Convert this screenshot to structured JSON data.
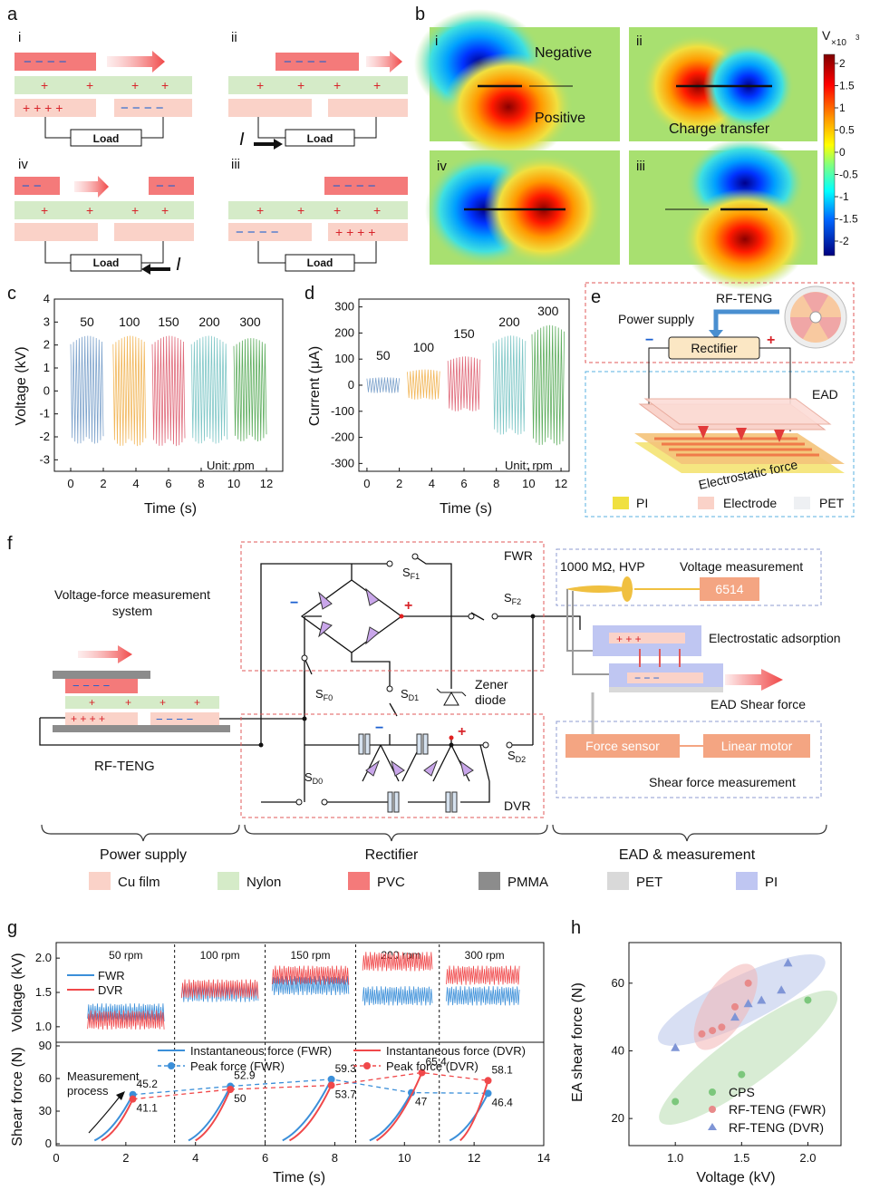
{
  "figure": {
    "panel_a": {
      "letter": "a",
      "sub": [
        "i",
        "ii",
        "iii",
        "iv"
      ],
      "load": "Load",
      "current": "I",
      "minus": "−",
      "plus": "+"
    },
    "panel_b": {
      "letter": "b",
      "sub": [
        "i",
        "ii",
        "iii",
        "iv"
      ],
      "negative": "Negative",
      "positive": "Positive",
      "charge_transfer": "Charge transfer",
      "colorbar": {
        "unit": "V",
        "exp": "×10",
        "exp_pow": "3",
        "ticks": [
          "2",
          "1.5",
          "1",
          "0.5",
          "0",
          "-0.5",
          "-1",
          "-1.5",
          "-2"
        ]
      }
    },
    "panel_c": {
      "letter": "c",
      "ylabel": "Voltage (kV)",
      "xlabel": "Time (s)",
      "unit": "Unit: rpm",
      "speeds": [
        "50",
        "100",
        "150",
        "200",
        "300"
      ],
      "yticks": [
        "4",
        "3",
        "2",
        "1",
        "0",
        "-1",
        "-2",
        "-3"
      ],
      "xticks": [
        "0",
        "2",
        "4",
        "6",
        "8",
        "10",
        "12"
      ]
    },
    "panel_d": {
      "letter": "d",
      "ylabel": "Current (μA)",
      "xlabel": "Time (s)",
      "unit": "Unit: rpm",
      "speeds": [
        "50",
        "100",
        "150",
        "200",
        "300"
      ],
      "yticks": [
        "300",
        "200",
        "100",
        "0",
        "-100",
        "-200",
        "-300"
      ],
      "xticks": [
        "0",
        "2",
        "4",
        "6",
        "8",
        "10",
        "12"
      ]
    },
    "panel_e": {
      "letter": "e",
      "rfteng": "RF-TENG",
      "power_supply": "Power supply",
      "rectifier": "Rectifier",
      "ead": "EAD",
      "es_force": "Electrostatic force",
      "legend": [
        "PI",
        "Electrode",
        "PET"
      ],
      "minus": "−",
      "plus": "+"
    },
    "panel_f": {
      "letter": "f",
      "fwr": "FWR",
      "dvr": "DVR",
      "vfms": "Voltage-force measurement",
      "vfms2": "system",
      "rfteng": "RF-TENG",
      "hvp": "1000 MΩ, HVP",
      "vm": "Voltage measurement",
      "meter": "6514",
      "esa": "Electrostatic adsorption",
      "ead_shear": "EAD Shear force",
      "force_sensor": "Force sensor",
      "linear_motor": "Linear motor",
      "sfm": "Shear force measurement",
      "zener": "Zener",
      "diode": "diode",
      "switches": {
        "sf1": "S",
        "sf1s": "F1",
        "sf2": "S",
        "sf2s": "F2",
        "sf0": "S",
        "sf0s": "F0",
        "sd1": "S",
        "sd1s": "D1",
        "sd2": "S",
        "sd2s": "D2",
        "sd0": "S",
        "sd0s": "D0"
      },
      "groups": [
        "Power supply",
        "Rectifier",
        "EAD & measurement"
      ],
      "materials": [
        "Cu film",
        "Nylon",
        "PVC",
        "PMMA",
        "PET",
        "PI"
      ]
    },
    "panel_g": {
      "letter": "g",
      "speeds": [
        "50 rpm",
        "100 rpm",
        "150 rpm",
        "200 rpm",
        "300 rpm"
      ],
      "vlabel": "Voltage (kV)",
      "flabel": "Shear force (N)",
      "xlabel": "Time (s)",
      "vyticks": [
        "2.0",
        "1.5",
        "1.0"
      ],
      "fyticks": [
        "90",
        "60",
        "30",
        "0"
      ],
      "xticks": [
        "0",
        "2",
        "4",
        "6",
        "8",
        "10",
        "12",
        "14"
      ],
      "legend_v": [
        "FWR",
        "DVR"
      ],
      "legend_f": [
        "Instantaneous force (FWR)",
        "Peak force (FWR)",
        "Instantaneous force (DVR)",
        "Peak force (DVR)"
      ],
      "process1": "Measurement",
      "process2": "process"
    },
    "panel_h": {
      "letter": "h",
      "ylabel": "EA shear force (N)",
      "xlabel": "Voltage (kV)",
      "legend": [
        "CPS",
        "RF-TENG (FWR)",
        "RF-TENG (DVR)"
      ],
      "yticks": [
        "60",
        "40",
        "20"
      ],
      "xticks": [
        "1.0",
        "1.5",
        "2.0"
      ]
    },
    "colors": {
      "pvc": "#f47a7a",
      "nylon": "#d5ebc8",
      "cu": "#fad2c8",
      "pmma": "#8c8c8c",
      "pet": "#d9d9d9",
      "pi": "#bfc6f2",
      "fwr": "#3b8fd9",
      "dvr": "#f0484a"
    }
  },
  "chart_data": [
    {
      "type": "line",
      "title": "c",
      "xlabel": "Time (s)",
      "ylabel": "Voltage (kV)",
      "xlim": [
        -1,
        13
      ],
      "ylim": [
        -3.5,
        4
      ],
      "series": [
        {
          "name": "50",
          "x": [
            0.0,
            2.0
          ],
          "amp": [
            2.4,
            -2.3
          ]
        },
        {
          "name": "100",
          "x": [
            2.6,
            4.6
          ],
          "amp": [
            2.4,
            -2.4
          ]
        },
        {
          "name": "150",
          "x": [
            5.0,
            7.0
          ],
          "amp": [
            2.4,
            -2.4
          ]
        },
        {
          "name": "200",
          "x": [
            7.4,
            9.6
          ],
          "amp": [
            2.4,
            -2.3
          ]
        },
        {
          "name": "300",
          "x": [
            10.0,
            12.0
          ],
          "amp": [
            2.3,
            -2.2
          ]
        }
      ]
    },
    {
      "type": "line",
      "title": "d",
      "xlabel": "Time (s)",
      "ylabel": "Current (μA)",
      "xlim": [
        -0.5,
        12.5
      ],
      "ylim": [
        -330,
        330
      ],
      "series": [
        {
          "name": "50",
          "x": [
            0.0,
            2.0
          ],
          "amp": [
            30,
            -30
          ]
        },
        {
          "name": "100",
          "x": [
            2.5,
            4.5
          ],
          "amp": [
            60,
            -55
          ]
        },
        {
          "name": "150",
          "x": [
            5.0,
            7.0
          ],
          "amp": [
            110,
            -100
          ]
        },
        {
          "name": "200",
          "x": [
            7.8,
            9.8
          ],
          "amp": [
            190,
            -190
          ]
        },
        {
          "name": "300",
          "x": [
            10.2,
            12.2
          ],
          "amp": [
            230,
            -230
          ]
        }
      ]
    },
    {
      "type": "line",
      "title": "g voltage",
      "ylabel": "Voltage (kV)",
      "ylim": [
        0.8,
        2.2
      ],
      "series": [
        {
          "name": "FWR",
          "values": [
            1.2,
            1.5,
            1.6,
            1.45,
            1.45
          ]
        },
        {
          "name": "DVR",
          "values": [
            1.1,
            1.55,
            1.75,
            1.95,
            1.75
          ]
        }
      ]
    },
    {
      "type": "line",
      "title": "g force",
      "xlabel": "Time (s)",
      "ylabel": "Shear force (N)",
      "xlim": [
        0,
        14
      ],
      "ylim": [
        0,
        90
      ],
      "series": [
        {
          "name": "Peak force (FWR)",
          "x": [
            2.2,
            5.0,
            7.9,
            10.2,
            12.4
          ],
          "values": [
            45.2,
            52.9,
            59.3,
            47,
            46.4
          ]
        },
        {
          "name": "Peak force (DVR)",
          "x": [
            2.2,
            5.0,
            7.9,
            10.5,
            12.4
          ],
          "values": [
            41.1,
            50,
            53.7,
            65.4,
            58.1
          ]
        }
      ],
      "labels": [
        "45.2",
        "41.1",
        "52.9",
        "50",
        "59.3",
        "53.7",
        "65.4",
        "47",
        "58.1",
        "46.4"
      ]
    },
    {
      "type": "scatter",
      "title": "h",
      "xlabel": "Voltage (kV)",
      "ylabel": "EA shear force (N)",
      "xlim": [
        0.65,
        2.25
      ],
      "ylim": [
        12,
        72
      ],
      "series": [
        {
          "name": "CPS",
          "x": [
            1.0,
            1.5,
            2.0
          ],
          "y": [
            25,
            33,
            55
          ]
        },
        {
          "name": "RF-TENG (FWR)",
          "x": [
            1.2,
            1.28,
            1.35,
            1.45,
            1.55
          ],
          "y": [
            45,
            46,
            47,
            53,
            60
          ]
        },
        {
          "name": "RF-TENG (DVR)",
          "x": [
            1.0,
            1.45,
            1.55,
            1.65,
            1.8,
            1.85
          ],
          "y": [
            41,
            50,
            54,
            55,
            58,
            66
          ]
        }
      ]
    }
  ]
}
